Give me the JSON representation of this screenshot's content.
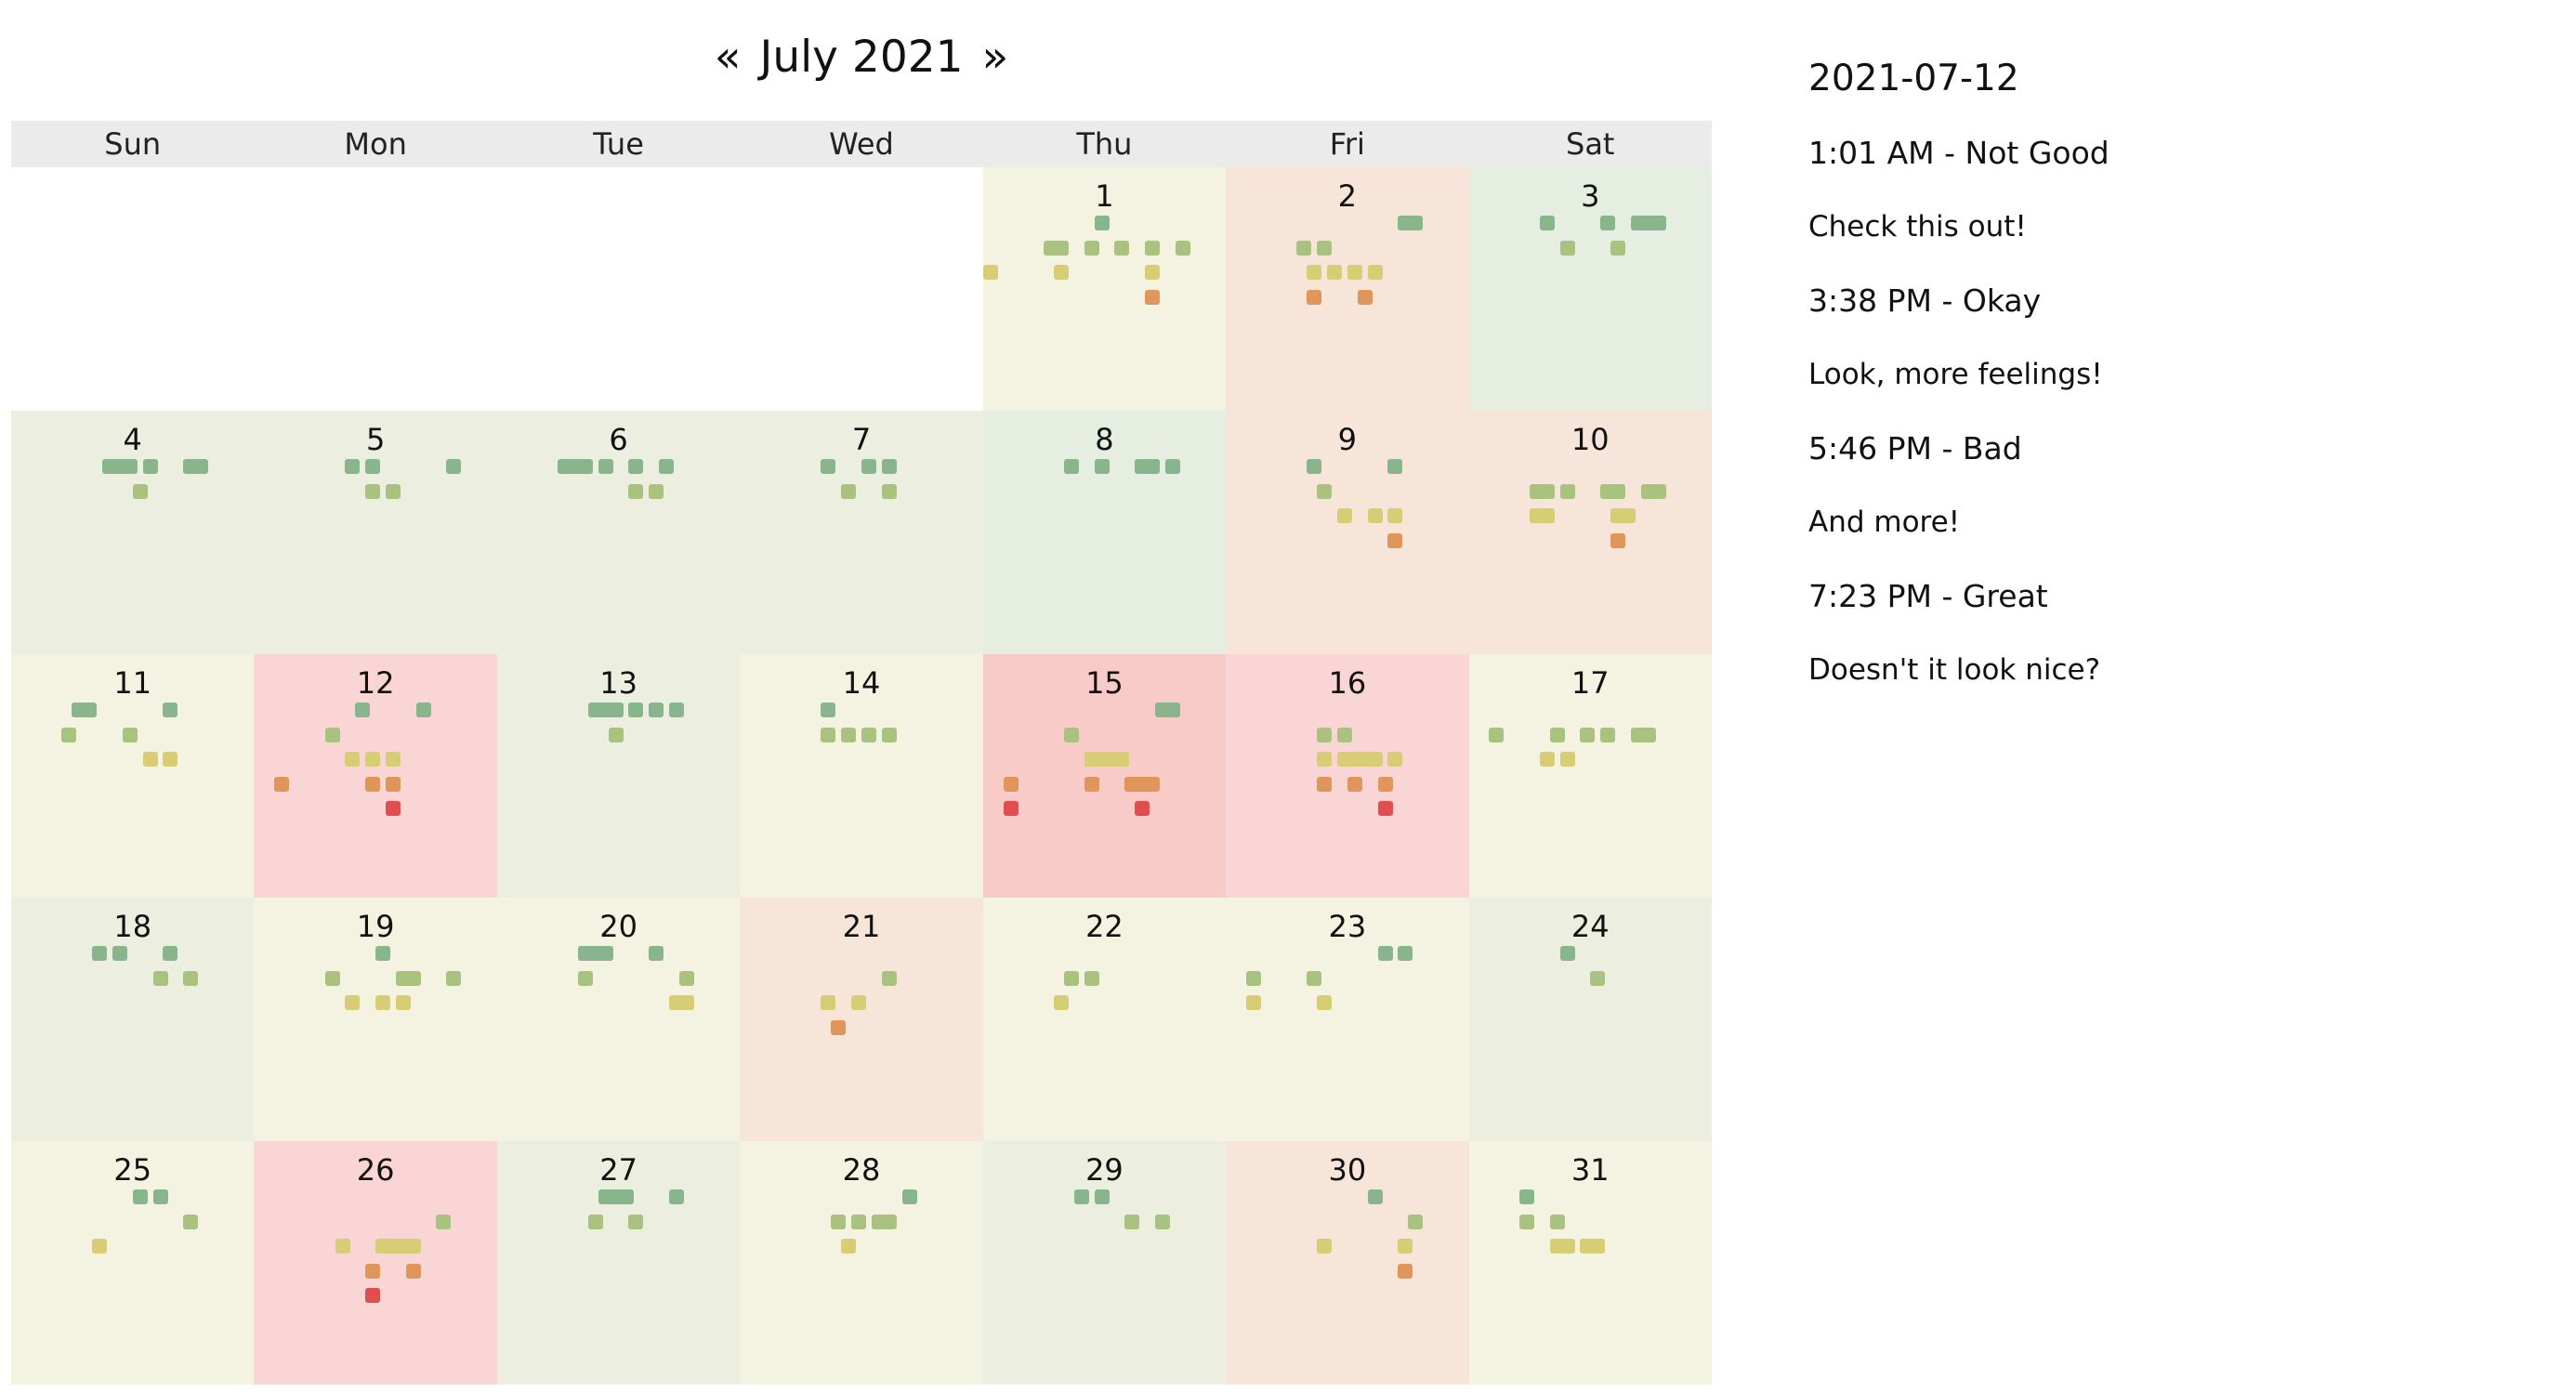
{
  "calendar": {
    "prev_label": "«",
    "title": "July 2021",
    "next_label": "»",
    "weekdays": [
      "Sun",
      "Mon",
      "Tue",
      "Wed",
      "Thu",
      "Fri",
      "Sat"
    ],
    "first_weekday_index": 4,
    "mood_colors": {
      "great": "#88b58c",
      "good": "#a9c280",
      "okay": "#d7cd74",
      "not_good": "#e0965a",
      "bad": "#e04e4e"
    },
    "day_background_colors": {
      "great": "#e5eee1",
      "good": "#ecefe0",
      "okay": "#f4f3e2",
      "not_good": "#f6e5d8",
      "bad": "#f9d5d5",
      "worst": "#f9cbc8"
    },
    "days": [
      {
        "day": "1",
        "bg": "okay",
        "marks": [
          [
            "great",
            11
          ],
          [
            "good",
            7
          ],
          [
            "good",
            10
          ],
          [
            "good",
            13
          ],
          [
            "good",
            16
          ],
          [
            "good",
            19
          ],
          [
            "good",
            6
          ],
          [
            "okay",
            0
          ],
          [
            "okay",
            7
          ],
          [
            "okay",
            16
          ],
          [
            "not_good",
            16
          ]
        ]
      },
      {
        "day": "2",
        "bg": "not_good",
        "marks": [
          [
            "great",
            17
          ],
          [
            "great",
            18
          ],
          [
            "good",
            7
          ],
          [
            "good",
            9
          ],
          [
            "okay",
            8
          ],
          [
            "okay",
            10
          ],
          [
            "okay",
            12
          ],
          [
            "okay",
            14
          ],
          [
            "not_good",
            8
          ],
          [
            "not_good",
            13
          ]
        ]
      },
      {
        "day": "3",
        "bg": "great",
        "marks": [
          [
            "great",
            7
          ],
          [
            "great",
            13
          ],
          [
            "great",
            16
          ],
          [
            "great",
            17
          ],
          [
            "great",
            18
          ],
          [
            "good",
            9
          ],
          [
            "good",
            14
          ]
        ]
      },
      {
        "day": "4",
        "bg": "good",
        "marks": [
          [
            "great",
            9
          ],
          [
            "great",
            10
          ],
          [
            "great",
            11
          ],
          [
            "great",
            13
          ],
          [
            "great",
            17
          ],
          [
            "great",
            18
          ],
          [
            "good",
            12
          ]
        ]
      },
      {
        "day": "5",
        "bg": "good",
        "marks": [
          [
            "great",
            9
          ],
          [
            "great",
            11
          ],
          [
            "great",
            19
          ],
          [
            "good",
            11
          ],
          [
            "good",
            13
          ]
        ]
      },
      {
        "day": "6",
        "bg": "good",
        "marks": [
          [
            "great",
            7
          ],
          [
            "great",
            6
          ],
          [
            "great",
            8
          ],
          [
            "great",
            10
          ],
          [
            "great",
            13
          ],
          [
            "great",
            16
          ],
          [
            "good",
            13
          ],
          [
            "good",
            15
          ]
        ]
      },
      {
        "day": "7",
        "bg": "good",
        "marks": [
          [
            "great",
            8
          ],
          [
            "great",
            12
          ],
          [
            "great",
            14
          ],
          [
            "good",
            10
          ],
          [
            "good",
            14
          ]
        ]
      },
      {
        "day": "8",
        "bg": "great",
        "marks": [
          [
            "great",
            8
          ],
          [
            "great",
            11
          ],
          [
            "great",
            15
          ],
          [
            "great",
            16
          ],
          [
            "great",
            18
          ]
        ]
      },
      {
        "day": "9",
        "bg": "not_good",
        "marks": [
          [
            "great",
            8
          ],
          [
            "great",
            16
          ],
          [
            "good",
            9
          ],
          [
            "okay",
            11
          ],
          [
            "okay",
            14
          ],
          [
            "okay",
            16
          ],
          [
            "not_good",
            16
          ]
        ]
      },
      {
        "day": "10",
        "bg": "not_good",
        "marks": [
          [
            "good",
            7
          ],
          [
            "good",
            9
          ],
          [
            "good",
            14
          ],
          [
            "good",
            17
          ],
          [
            "good",
            18
          ],
          [
            "good",
            6
          ],
          [
            "good",
            13
          ],
          [
            "okay",
            6
          ],
          [
            "okay",
            7
          ],
          [
            "okay",
            14
          ],
          [
            "okay",
            15
          ],
          [
            "not_good",
            14
          ]
        ]
      },
      {
        "day": "11",
        "bg": "okay",
        "marks": [
          [
            "great",
            6
          ],
          [
            "great",
            7
          ],
          [
            "great",
            15
          ],
          [
            "good",
            5
          ],
          [
            "good",
            11
          ],
          [
            "okay",
            13
          ],
          [
            "okay",
            15
          ]
        ]
      },
      {
        "day": "12",
        "bg": "bad",
        "marks": [
          [
            "great",
            10
          ],
          [
            "great",
            16
          ],
          [
            "good",
            7
          ],
          [
            "okay",
            9
          ],
          [
            "okay",
            11
          ],
          [
            "okay",
            13
          ],
          [
            "not_good",
            2
          ],
          [
            "not_good",
            11
          ],
          [
            "not_good",
            13
          ],
          [
            "bad",
            13
          ]
        ]
      },
      {
        "day": "13",
        "bg": "good",
        "marks": [
          [
            "great",
            9
          ],
          [
            "great",
            10
          ],
          [
            "great",
            11
          ],
          [
            "great",
            15
          ],
          [
            "great",
            17
          ],
          [
            "great",
            13
          ],
          [
            "good",
            11
          ]
        ]
      },
      {
        "day": "14",
        "bg": "okay",
        "marks": [
          [
            "great",
            8
          ],
          [
            "good",
            8
          ],
          [
            "good",
            10
          ],
          [
            "good",
            12
          ],
          [
            "good",
            14
          ]
        ]
      },
      {
        "day": "15",
        "bg": "worst",
        "marks": [
          [
            "great",
            18
          ],
          [
            "great",
            17
          ],
          [
            "good",
            8
          ],
          [
            "okay",
            10
          ],
          [
            "okay",
            11
          ],
          [
            "okay",
            12
          ],
          [
            "okay",
            13
          ],
          [
            "not_good",
            2
          ],
          [
            "not_good",
            10
          ],
          [
            "not_good",
            14
          ],
          [
            "not_good",
            15
          ],
          [
            "not_good",
            16
          ],
          [
            "bad",
            2
          ],
          [
            "bad",
            15
          ]
        ]
      },
      {
        "day": "16",
        "bg": "bad",
        "marks": [
          [
            "good",
            9
          ],
          [
            "good",
            11
          ],
          [
            "okay",
            9
          ],
          [
            "okay",
            11
          ],
          [
            "okay",
            12
          ],
          [
            "okay",
            13
          ],
          [
            "okay",
            14
          ],
          [
            "okay",
            16
          ],
          [
            "not_good",
            9
          ],
          [
            "not_good",
            12
          ],
          [
            "not_good",
            15
          ],
          [
            "bad",
            15
          ]
        ]
      },
      {
        "day": "17",
        "bg": "okay",
        "marks": [
          [
            "good",
            2
          ],
          [
            "good",
            8
          ],
          [
            "good",
            11
          ],
          [
            "good",
            13
          ],
          [
            "good",
            16
          ],
          [
            "good",
            17
          ],
          [
            "okay",
            7
          ],
          [
            "okay",
            9
          ]
        ]
      },
      {
        "day": "18",
        "bg": "good",
        "marks": [
          [
            "great",
            8
          ],
          [
            "great",
            10
          ],
          [
            "great",
            15
          ],
          [
            "good",
            14
          ],
          [
            "good",
            17
          ]
        ]
      },
      {
        "day": "19",
        "bg": "okay",
        "marks": [
          [
            "great",
            12
          ],
          [
            "good",
            7
          ],
          [
            "good",
            14
          ],
          [
            "good",
            15
          ],
          [
            "good",
            19
          ],
          [
            "okay",
            9
          ],
          [
            "okay",
            12
          ],
          [
            "okay",
            14
          ]
        ]
      },
      {
        "day": "20",
        "bg": "okay",
        "marks": [
          [
            "great",
            8
          ],
          [
            "great",
            9
          ],
          [
            "great",
            10
          ],
          [
            "great",
            15
          ],
          [
            "good",
            8
          ],
          [
            "good",
            18
          ],
          [
            "okay",
            17
          ],
          [
            "okay",
            18
          ]
        ]
      },
      {
        "day": "21",
        "bg": "not_good",
        "marks": [
          [
            "good",
            14
          ],
          [
            "okay",
            8
          ],
          [
            "okay",
            11
          ],
          [
            "not_good",
            9
          ]
        ]
      },
      {
        "day": "22",
        "bg": "okay",
        "marks": [
          [
            "good",
            8
          ],
          [
            "good",
            10
          ],
          [
            "okay",
            7
          ]
        ]
      },
      {
        "day": "23",
        "bg": "okay",
        "marks": [
          [
            "great",
            15
          ],
          [
            "great",
            17
          ],
          [
            "good",
            2
          ],
          [
            "good",
            8
          ],
          [
            "okay",
            2
          ],
          [
            "okay",
            9
          ]
        ]
      },
      {
        "day": "24",
        "bg": "good",
        "marks": [
          [
            "great",
            9
          ],
          [
            "good",
            12
          ]
        ]
      },
      {
        "day": "25",
        "bg": "okay",
        "marks": [
          [
            "great",
            12
          ],
          [
            "great",
            14
          ],
          [
            "good",
            17
          ],
          [
            "okay",
            8
          ]
        ]
      },
      {
        "day": "26",
        "bg": "bad",
        "marks": [
          [
            "good",
            18
          ],
          [
            "okay",
            8
          ],
          [
            "okay",
            12
          ],
          [
            "okay",
            13
          ],
          [
            "okay",
            14
          ],
          [
            "okay",
            15
          ],
          [
            "not_good",
            11
          ],
          [
            "not_good",
            15
          ],
          [
            "bad",
            11
          ]
        ]
      },
      {
        "day": "27",
        "bg": "good",
        "marks": [
          [
            "great",
            10
          ],
          [
            "great",
            11
          ],
          [
            "great",
            12
          ],
          [
            "great",
            17
          ],
          [
            "good",
            9
          ],
          [
            "good",
            13
          ]
        ]
      },
      {
        "day": "28",
        "bg": "okay",
        "marks": [
          [
            "great",
            16
          ],
          [
            "good",
            9
          ],
          [
            "good",
            11
          ],
          [
            "good",
            13
          ],
          [
            "good",
            14
          ],
          [
            "okay",
            10
          ]
        ]
      },
      {
        "day": "29",
        "bg": "good",
        "marks": [
          [
            "great",
            9
          ],
          [
            "great",
            11
          ],
          [
            "good",
            14
          ],
          [
            "good",
            17
          ]
        ]
      },
      {
        "day": "30",
        "bg": "not_good",
        "marks": [
          [
            "great",
            14
          ],
          [
            "good",
            18
          ],
          [
            "okay",
            9
          ],
          [
            "okay",
            17
          ],
          [
            "not_good",
            17
          ]
        ]
      },
      {
        "day": "31",
        "bg": "okay",
        "marks": [
          [
            "great",
            5
          ],
          [
            "good",
            5
          ],
          [
            "good",
            8
          ],
          [
            "okay",
            8
          ],
          [
            "okay",
            9
          ],
          [
            "okay",
            11
          ],
          [
            "okay",
            12
          ]
        ]
      }
    ]
  },
  "day_panel": {
    "date": "2021-07-12",
    "entries": [
      {
        "title": "1:01 AM - Not Good",
        "note": "Check this out!"
      },
      {
        "title": "3:38 PM - Okay",
        "note": "Look, more feelings!"
      },
      {
        "title": "5:46 PM - Bad",
        "note": "And more!"
      },
      {
        "title": "7:23 PM - Great",
        "note": "Doesn't it look nice?"
      }
    ]
  }
}
